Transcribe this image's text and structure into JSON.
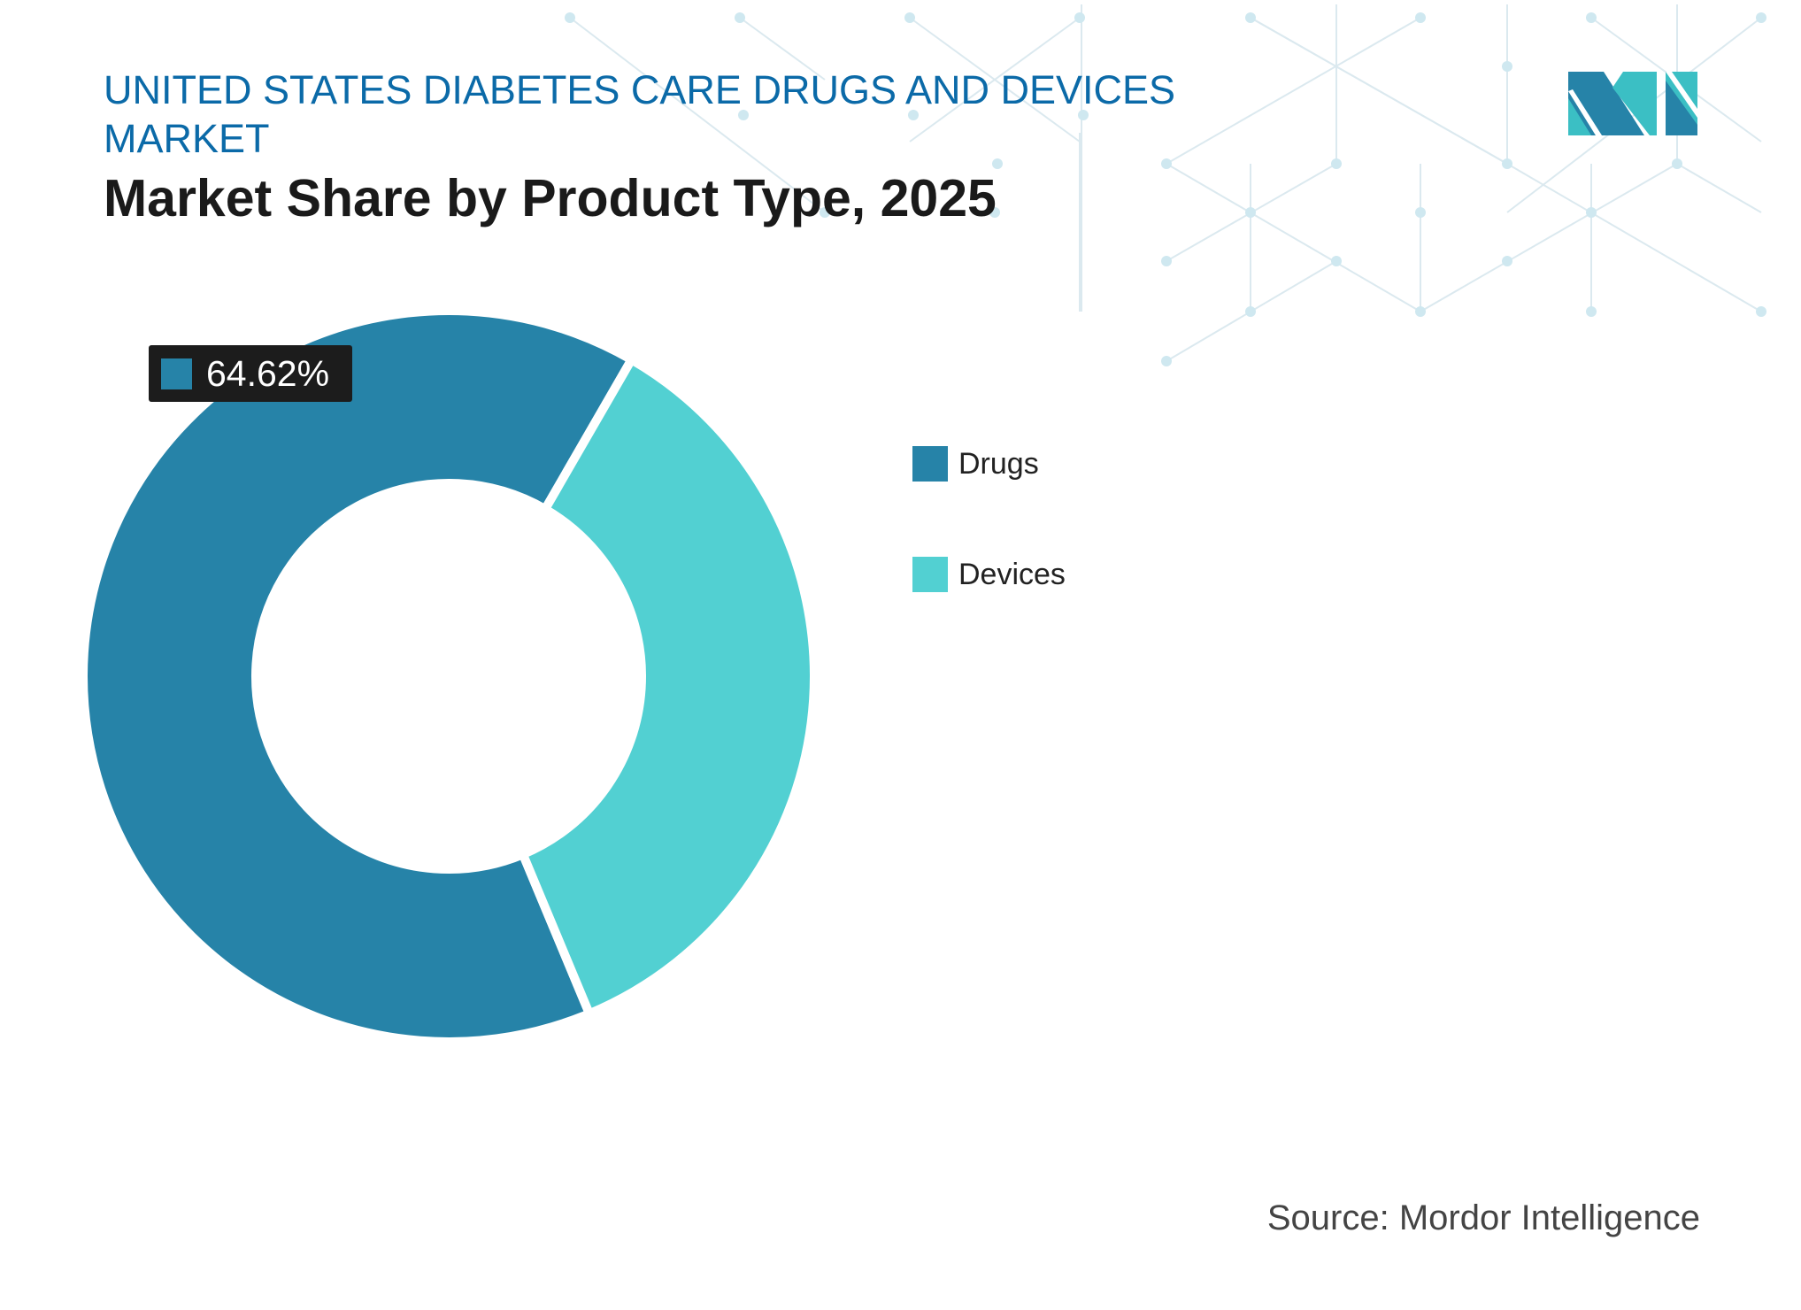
{
  "header": {
    "title": "UNITED STATES DIABETES CARE DRUGS AND DEVICES MARKET",
    "subtitle": "Market Share by Product Type, 2025"
  },
  "logo": {
    "text": "MI",
    "colors": [
      "#2683a8",
      "#3bbfc4"
    ]
  },
  "chart_data": {
    "type": "pie",
    "variant": "donut",
    "title": "Market Share by Product Type, 2025",
    "categories": [
      "Drugs",
      "Devices"
    ],
    "values": [
      64.62,
      35.38
    ],
    "unit": "%",
    "colors": [
      "#2683a8",
      "#52d0d2"
    ],
    "data_labels": [
      {
        "category": "Drugs",
        "text": "64.62%"
      }
    ],
    "legend": "right"
  },
  "legend": {
    "items": [
      {
        "label": "Drugs",
        "color": "#2683a8"
      },
      {
        "label": "Devices",
        "color": "#52d0d2"
      }
    ]
  },
  "footer": {
    "source": "Source: Mordor Intelligence"
  }
}
